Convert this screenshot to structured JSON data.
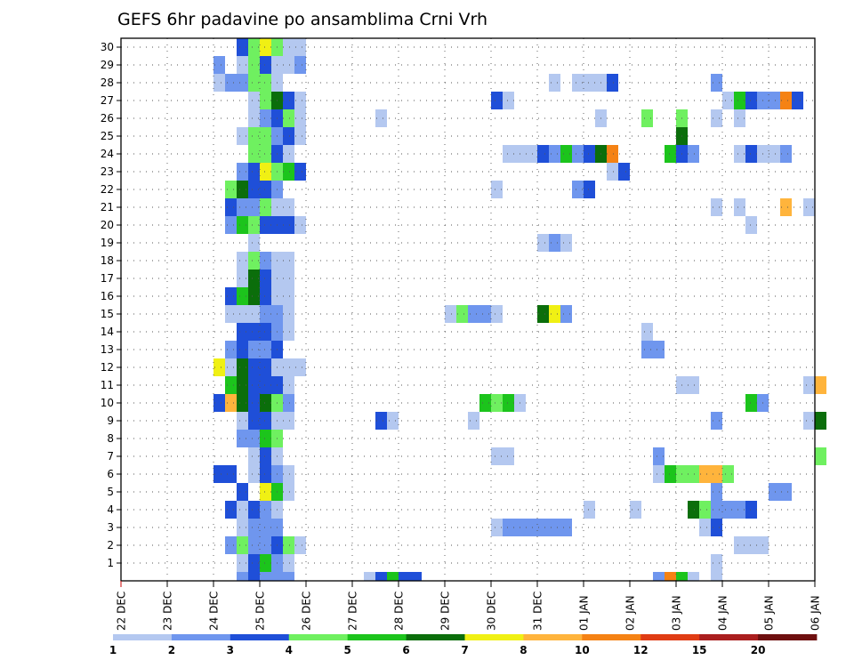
{
  "chart_data": {
    "type": "heatmap",
    "title": "GEFS 6hr padavine po ansamblima Crni Vrh",
    "xlabel": "",
    "ylabel": "",
    "x_tick_labels": [
      "22 DEC",
      "23 DEC",
      "24 DEC",
      "25 DEC",
      "26 DEC",
      "27 DEC",
      "28 DEC",
      "29 DEC",
      "30 DEC",
      "31 DEC",
      "01 JAN",
      "02 JAN",
      "03 JAN",
      "04 JAN",
      "05 JAN",
      "06 JAN"
    ],
    "x_steps_per_day": 4,
    "x_step_hours": 6,
    "y_range": [
      0,
      30
    ],
    "y_tick_labels": [
      1,
      2,
      3,
      4,
      5,
      6,
      7,
      8,
      9,
      10,
      11,
      12,
      13,
      14,
      15,
      16,
      17,
      18,
      19,
      20,
      21,
      22,
      23,
      24,
      25,
      26,
      27,
      28,
      29,
      30
    ],
    "grid": true,
    "legend": {
      "placement": "bottom",
      "bins": [
        {
          "color": "#b4c8f0",
          "from": 1,
          "to": 2
        },
        {
          "color": "#6f96ee",
          "from": 2,
          "to": 3
        },
        {
          "color": "#1f4fd8",
          "from": 3,
          "to": 4
        },
        {
          "color": "#6ff060",
          "from": 4,
          "to": 5
        },
        {
          "color": "#1cc41c",
          "from": 5,
          "to": 6
        },
        {
          "color": "#0b6e0b",
          "from": 6,
          "to": 7
        },
        {
          "color": "#f0f014",
          "from": 7,
          "to": 8
        },
        {
          "color": "#ffb43c",
          "from": 8,
          "to": 10
        },
        {
          "color": "#f58214",
          "from": 10,
          "to": 12
        },
        {
          "color": "#e03c14",
          "from": 12,
          "to": 15
        },
        {
          "color": "#aa1e1e",
          "from": 15,
          "to": 20
        },
        {
          "color": "#6e0f0f",
          "from": 20,
          "to": 25
        }
      ],
      "tick_labels": [
        "1",
        "2",
        "3",
        "4",
        "5",
        "6",
        "7",
        "8",
        "10",
        "12",
        "15",
        "20"
      ]
    },
    "note_cells": "each cell: step index from 22 DEC 00Z (6h steps), member row 0..30 (0 = control below 1), bin index into legend.bins",
    "cells": [
      [
        10,
        30,
        2
      ],
      [
        11,
        30,
        3
      ],
      [
        12,
        30,
        6
      ],
      [
        13,
        30,
        3
      ],
      [
        14,
        30,
        0
      ],
      [
        15,
        30,
        0
      ],
      [
        8,
        29,
        1
      ],
      [
        10,
        29,
        0
      ],
      [
        11,
        29,
        3
      ],
      [
        12,
        29,
        2
      ],
      [
        13,
        29,
        0
      ],
      [
        14,
        29,
        0
      ],
      [
        15,
        29,
        1
      ],
      [
        8,
        28,
        0
      ],
      [
        9,
        28,
        1
      ],
      [
        10,
        28,
        1
      ],
      [
        11,
        28,
        3
      ],
      [
        12,
        28,
        3
      ],
      [
        13,
        28,
        0
      ],
      [
        37,
        28,
        0
      ],
      [
        39,
        28,
        0
      ],
      [
        40,
        28,
        0
      ],
      [
        41,
        28,
        0
      ],
      [
        42,
        28,
        2
      ],
      [
        51,
        28,
        1
      ],
      [
        11,
        27,
        0
      ],
      [
        12,
        27,
        3
      ],
      [
        13,
        27,
        5
      ],
      [
        14,
        27,
        2
      ],
      [
        15,
        27,
        0
      ],
      [
        32,
        27,
        2
      ],
      [
        33,
        27,
        0
      ],
      [
        52,
        27,
        0
      ],
      [
        53,
        27,
        4
      ],
      [
        54,
        27,
        2
      ],
      [
        55,
        27,
        1
      ],
      [
        56,
        27,
        1
      ],
      [
        57,
        27,
        8
      ],
      [
        58,
        27,
        2
      ],
      [
        11,
        26,
        0
      ],
      [
        12,
        26,
        1
      ],
      [
        13,
        26,
        2
      ],
      [
        14,
        26,
        3
      ],
      [
        15,
        26,
        0
      ],
      [
        22,
        26,
        0
      ],
      [
        41,
        26,
        0
      ],
      [
        45,
        26,
        3
      ],
      [
        48,
        26,
        3
      ],
      [
        51,
        26,
        0
      ],
      [
        53,
        26,
        0
      ],
      [
        10,
        25,
        0
      ],
      [
        11,
        25,
        3
      ],
      [
        12,
        25,
        3
      ],
      [
        13,
        25,
        1
      ],
      [
        14,
        25,
        2
      ],
      [
        15,
        25,
        0
      ],
      [
        48,
        25,
        5
      ],
      [
        11,
        24,
        3
      ],
      [
        12,
        24,
        3
      ],
      [
        13,
        24,
        2
      ],
      [
        14,
        24,
        0
      ],
      [
        33,
        24,
        0
      ],
      [
        34,
        24,
        0
      ],
      [
        35,
        24,
        0
      ],
      [
        36,
        24,
        2
      ],
      [
        37,
        24,
        1
      ],
      [
        38,
        24,
        4
      ],
      [
        39,
        24,
        1
      ],
      [
        40,
        24,
        2
      ],
      [
        41,
        24,
        5
      ],
      [
        42,
        24,
        8
      ],
      [
        47,
        24,
        4
      ],
      [
        48,
        24,
        2
      ],
      [
        49,
        24,
        1
      ],
      [
        53,
        24,
        0
      ],
      [
        54,
        24,
        2
      ],
      [
        55,
        24,
        0
      ],
      [
        56,
        24,
        0
      ],
      [
        57,
        24,
        1
      ],
      [
        10,
        23,
        1
      ],
      [
        11,
        23,
        2
      ],
      [
        12,
        23,
        6
      ],
      [
        13,
        23,
        3
      ],
      [
        14,
        23,
        4
      ],
      [
        15,
        23,
        2
      ],
      [
        42,
        23,
        0
      ],
      [
        43,
        23,
        2
      ],
      [
        9,
        22,
        3
      ],
      [
        10,
        22,
        5
      ],
      [
        11,
        22,
        2
      ],
      [
        12,
        22,
        2
      ],
      [
        13,
        22,
        1
      ],
      [
        32,
        22,
        0
      ],
      [
        39,
        22,
        1
      ],
      [
        40,
        22,
        2
      ],
      [
        9,
        21,
        2
      ],
      [
        10,
        21,
        1
      ],
      [
        11,
        21,
        1
      ],
      [
        12,
        21,
        3
      ],
      [
        13,
        21,
        0
      ],
      [
        14,
        21,
        0
      ],
      [
        51,
        21,
        0
      ],
      [
        53,
        21,
        0
      ],
      [
        57,
        21,
        7
      ],
      [
        59,
        21,
        0
      ],
      [
        9,
        20,
        1
      ],
      [
        10,
        20,
        4
      ],
      [
        11,
        20,
        3
      ],
      [
        12,
        20,
        2
      ],
      [
        13,
        20,
        2
      ],
      [
        14,
        20,
        2
      ],
      [
        15,
        20,
        0
      ],
      [
        54,
        20,
        0
      ],
      [
        11,
        19,
        0
      ],
      [
        36,
        19,
        0
      ],
      [
        37,
        19,
        1
      ],
      [
        38,
        19,
        0
      ],
      [
        10,
        18,
        0
      ],
      [
        11,
        18,
        3
      ],
      [
        12,
        18,
        1
      ],
      [
        13,
        18,
        0
      ],
      [
        14,
        18,
        0
      ],
      [
        10,
        17,
        0
      ],
      [
        11,
        17,
        5
      ],
      [
        12,
        17,
        2
      ],
      [
        13,
        17,
        0
      ],
      [
        14,
        17,
        0
      ],
      [
        9,
        16,
        2
      ],
      [
        10,
        16,
        4
      ],
      [
        11,
        16,
        5
      ],
      [
        12,
        16,
        2
      ],
      [
        13,
        16,
        0
      ],
      [
        14,
        16,
        0
      ],
      [
        9,
        15,
        0
      ],
      [
        10,
        15,
        0
      ],
      [
        11,
        15,
        0
      ],
      [
        12,
        15,
        1
      ],
      [
        13,
        15,
        1
      ],
      [
        14,
        15,
        0
      ],
      [
        28,
        15,
        0
      ],
      [
        29,
        15,
        3
      ],
      [
        30,
        15,
        1
      ],
      [
        31,
        15,
        1
      ],
      [
        32,
        15,
        0
      ],
      [
        36,
        15,
        5
      ],
      [
        37,
        15,
        6
      ],
      [
        38,
        15,
        1
      ],
      [
        10,
        14,
        2
      ],
      [
        11,
        14,
        2
      ],
      [
        12,
        14,
        2
      ],
      [
        13,
        14,
        1
      ],
      [
        14,
        14,
        0
      ],
      [
        45,
        14,
        0
      ],
      [
        9,
        13,
        1
      ],
      [
        10,
        13,
        2
      ],
      [
        11,
        13,
        1
      ],
      [
        12,
        13,
        1
      ],
      [
        13,
        13,
        2
      ],
      [
        45,
        13,
        1
      ],
      [
        46,
        13,
        1
      ],
      [
        8,
        12,
        6
      ],
      [
        9,
        12,
        0
      ],
      [
        10,
        12,
        5
      ],
      [
        11,
        12,
        2
      ],
      [
        12,
        12,
        2
      ],
      [
        13,
        12,
        0
      ],
      [
        14,
        12,
        0
      ],
      [
        15,
        12,
        0
      ],
      [
        9,
        11,
        4
      ],
      [
        10,
        11,
        5
      ],
      [
        11,
        11,
        2
      ],
      [
        12,
        11,
        2
      ],
      [
        13,
        11,
        2
      ],
      [
        14,
        11,
        0
      ],
      [
        48,
        11,
        0
      ],
      [
        49,
        11,
        0
      ],
      [
        59,
        11,
        0
      ],
      [
        60,
        11,
        7
      ],
      [
        8,
        10,
        2
      ],
      [
        9,
        10,
        7
      ],
      [
        10,
        10,
        5
      ],
      [
        11,
        10,
        2
      ],
      [
        12,
        10,
        5
      ],
      [
        13,
        10,
        3
      ],
      [
        14,
        10,
        1
      ],
      [
        31,
        10,
        4
      ],
      [
        32,
        10,
        3
      ],
      [
        33,
        10,
        4
      ],
      [
        34,
        10,
        0
      ],
      [
        54,
        10,
        4
      ],
      [
        55,
        10,
        1
      ],
      [
        10,
        9,
        0
      ],
      [
        11,
        9,
        2
      ],
      [
        12,
        9,
        2
      ],
      [
        13,
        9,
        0
      ],
      [
        14,
        9,
        0
      ],
      [
        22,
        9,
        2
      ],
      [
        23,
        9,
        0
      ],
      [
        30,
        9,
        0
      ],
      [
        51,
        9,
        1
      ],
      [
        59,
        9,
        0
      ],
      [
        60,
        9,
        5
      ],
      [
        10,
        8,
        1
      ],
      [
        11,
        8,
        1
      ],
      [
        12,
        8,
        4
      ],
      [
        13,
        8,
        3
      ],
      [
        11,
        7,
        0
      ],
      [
        12,
        7,
        2
      ],
      [
        13,
        7,
        0
      ],
      [
        32,
        7,
        0
      ],
      [
        33,
        7,
        0
      ],
      [
        46,
        7,
        1
      ],
      [
        60,
        7,
        3
      ],
      [
        8,
        6,
        2
      ],
      [
        9,
        6,
        2
      ],
      [
        11,
        6,
        0
      ],
      [
        12,
        6,
        2
      ],
      [
        13,
        6,
        1
      ],
      [
        14,
        6,
        0
      ],
      [
        46,
        6,
        0
      ],
      [
        47,
        6,
        4
      ],
      [
        48,
        6,
        3
      ],
      [
        49,
        6,
        3
      ],
      [
        50,
        6,
        7
      ],
      [
        51,
        6,
        7
      ],
      [
        52,
        6,
        3
      ],
      [
        10,
        5,
        2
      ],
      [
        12,
        5,
        6
      ],
      [
        13,
        5,
        4
      ],
      [
        14,
        5,
        0
      ],
      [
        51,
        5,
        1
      ],
      [
        56,
        5,
        1
      ],
      [
        57,
        5,
        1
      ],
      [
        9,
        4,
        2
      ],
      [
        10,
        4,
        0
      ],
      [
        11,
        4,
        2
      ],
      [
        12,
        4,
        1
      ],
      [
        13,
        4,
        0
      ],
      [
        40,
        4,
        0
      ],
      [
        44,
        4,
        0
      ],
      [
        49,
        4,
        5
      ],
      [
        50,
        4,
        3
      ],
      [
        51,
        4,
        1
      ],
      [
        52,
        4,
        1
      ],
      [
        53,
        4,
        1
      ],
      [
        54,
        4,
        2
      ],
      [
        10,
        3,
        0
      ],
      [
        11,
        3,
        1
      ],
      [
        12,
        3,
        1
      ],
      [
        13,
        3,
        1
      ],
      [
        32,
        3,
        0
      ],
      [
        33,
        3,
        1
      ],
      [
        34,
        3,
        1
      ],
      [
        35,
        3,
        1
      ],
      [
        36,
        3,
        1
      ],
      [
        37,
        3,
        1
      ],
      [
        38,
        3,
        1
      ],
      [
        50,
        3,
        0
      ],
      [
        51,
        3,
        2
      ],
      [
        9,
        2,
        1
      ],
      [
        10,
        2,
        3
      ],
      [
        11,
        2,
        1
      ],
      [
        12,
        2,
        1
      ],
      [
        13,
        2,
        2
      ],
      [
        14,
        2,
        3
      ],
      [
        15,
        2,
        0
      ],
      [
        53,
        2,
        0
      ],
      [
        54,
        2,
        0
      ],
      [
        55,
        2,
        0
      ],
      [
        10,
        1,
        0
      ],
      [
        11,
        1,
        2
      ],
      [
        12,
        1,
        4
      ],
      [
        13,
        1,
        1
      ],
      [
        14,
        1,
        0
      ],
      [
        51,
        1,
        0
      ],
      [
        10,
        0,
        1
      ],
      [
        11,
        0,
        2
      ],
      [
        12,
        0,
        1
      ],
      [
        13,
        0,
        1
      ],
      [
        14,
        0,
        1
      ],
      [
        21,
        0,
        0
      ],
      [
        22,
        0,
        2
      ],
      [
        23,
        0,
        4
      ],
      [
        24,
        0,
        2
      ],
      [
        25,
        0,
        2
      ],
      [
        46,
        0,
        1
      ],
      [
        47,
        0,
        8
      ],
      [
        48,
        0,
        4
      ],
      [
        49,
        0,
        0
      ],
      [
        51,
        0,
        0
      ]
    ]
  }
}
